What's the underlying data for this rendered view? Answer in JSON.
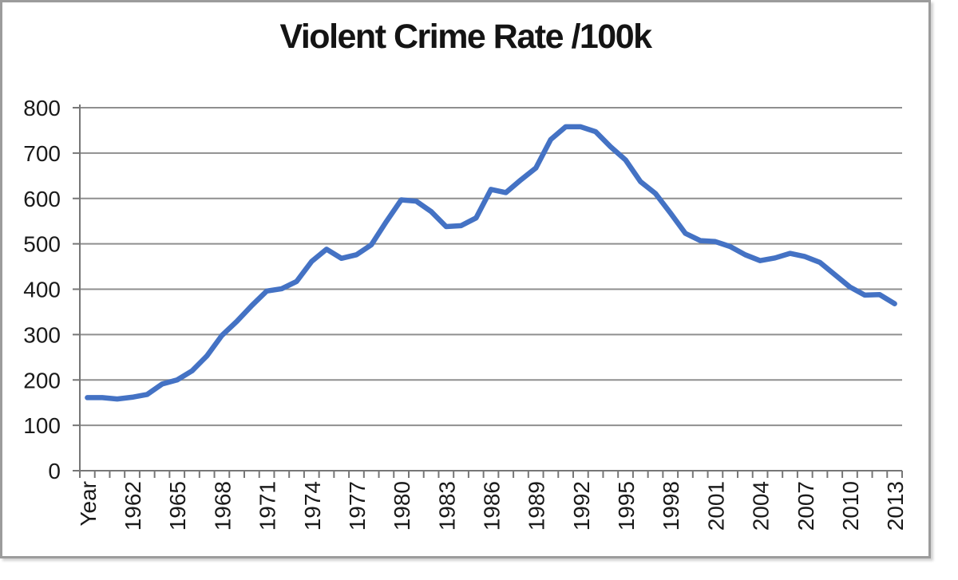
{
  "page": {
    "background": "#ffffff"
  },
  "chart_frame": {
    "border_color": "#9c9c9c",
    "background": "#ffffff"
  },
  "chart_data": {
    "type": "line",
    "title": "Violent Crime Rate /100k",
    "xlabel": "",
    "ylabel": "",
    "legend": "none",
    "grid": true,
    "ylim": [
      0,
      800
    ],
    "y_tick_step": 100,
    "y_tick_labels": [
      "0",
      "100",
      "200",
      "300",
      "400",
      "500",
      "600",
      "700",
      "800"
    ],
    "x_label_interval": 3,
    "visible_x_tick_labels": [
      "Year",
      "1962",
      "1965",
      "1968",
      "1971",
      "1974",
      "1977",
      "1980",
      "1983",
      "1986",
      "1989",
      "1992",
      "1995",
      "1998",
      "2001",
      "2004",
      "2007",
      "2010",
      "2013"
    ],
    "categories": [
      "Year",
      "1960",
      "1961",
      "1962",
      "1963",
      "1964",
      "1965",
      "1966",
      "1967",
      "1968",
      "1969",
      "1970",
      "1971",
      "1972",
      "1973",
      "1974",
      "1975",
      "1976",
      "1977",
      "1978",
      "1979",
      "1980",
      "1981",
      "1982",
      "1983",
      "1984",
      "1985",
      "1986",
      "1987",
      "1988",
      "1989",
      "1990",
      "1991",
      "1992",
      "1993",
      "1994",
      "1995",
      "1996",
      "1997",
      "1998",
      "1999",
      "2000",
      "2001",
      "2002",
      "2003",
      "2004",
      "2005",
      "2006",
      "2007",
      "2008",
      "2009",
      "2010",
      "2011",
      "2012",
      "2013"
    ],
    "series": [
      {
        "name": "Violent crime rate per 100k",
        "values": [
          161,
          161,
          158,
          162,
          168,
          191,
          200,
          220,
          253,
          298,
          329,
          364,
          396,
          401,
          417,
          461,
          488,
          468,
          476,
          498,
          549,
          597,
          594,
          571,
          538,
          540,
          557,
          620,
          613,
          641,
          667,
          730,
          758,
          758,
          747,
          714,
          685,
          637,
          611,
          568,
          523,
          507,
          505,
          494,
          476,
          463,
          469,
          479,
          472,
          459,
          432,
          405,
          387,
          388,
          368
        ]
      }
    ],
    "colors": {
      "line": "#4472C4",
      "gridline": "#8f8f8f",
      "axis": "#767676",
      "tick_label": "#1a1a1a",
      "title": "#141414"
    }
  }
}
